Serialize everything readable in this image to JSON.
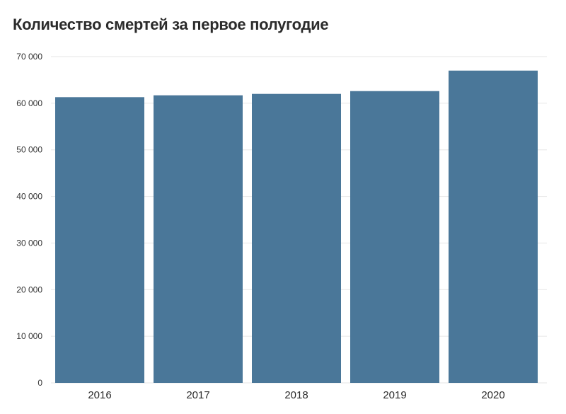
{
  "colors": {
    "bar": "#4a7799",
    "grid": "#e6e6e6",
    "background": "#ffffff"
  },
  "chart_data": {
    "type": "bar",
    "title": "Количество смертей за первое полугодие",
    "xlabel": "",
    "ylabel": "",
    "categories": [
      "2016",
      "2017",
      "2018",
      "2019",
      "2020"
    ],
    "values": [
      61300,
      61700,
      62000,
      62600,
      67000
    ],
    "ylim": [
      0,
      70000
    ],
    "yticks": [
      0,
      10000,
      20000,
      30000,
      40000,
      50000,
      60000,
      70000
    ],
    "ytick_labels": [
      "0",
      "10 000",
      "20 000",
      "30 000",
      "40 000",
      "50 000",
      "60 000",
      "70 000"
    ],
    "grid": true,
    "legend": "none"
  }
}
